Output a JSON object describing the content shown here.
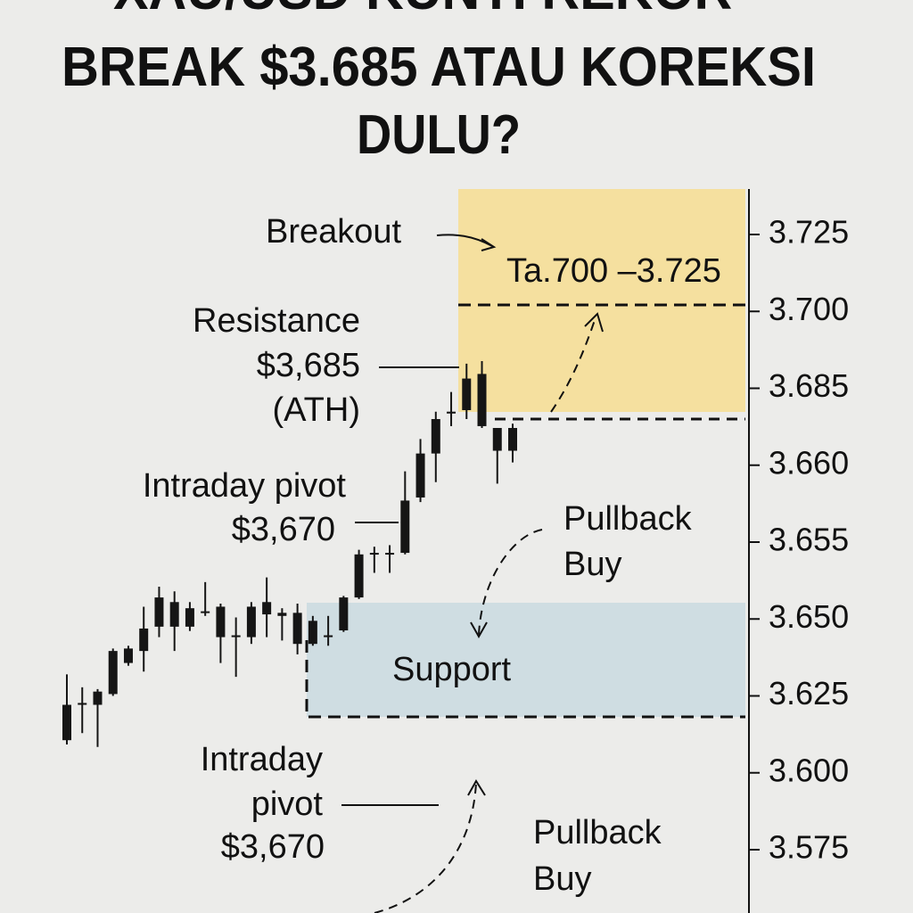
{
  "chart_data": {
    "type": "candlestick",
    "title": [
      "XAU/USD KUNTI REKOR —",
      "BREAK $3.685 ATAU KOREKSI",
      "DULU?"
    ],
    "categories": [
      null,
      null,
      null,
      null,
      null,
      null,
      null,
      null,
      null,
      null,
      null,
      null,
      null,
      null,
      null,
      null,
      null,
      null,
      null,
      null,
      null,
      null,
      null,
      null,
      null,
      null,
      null,
      null,
      null,
      null
    ],
    "high": [
      3.632,
      3.6278,
      3.6272,
      3.6404,
      3.6413,
      3.6508,
      3.6521,
      3.6518,
      3.6511,
      3.6524,
      3.651,
      3.6501,
      3.6511,
      3.6527,
      3.6507,
      3.651,
      3.6502,
      3.6502,
      3.6515,
      3.6545,
      3.6547,
      3.6548,
      3.6596,
      3.6685,
      3.6774,
      3.6838,
      3.6898,
      3.6903,
      3.6721,
      3.6735
    ],
    "low": [
      3.6092,
      3.6129,
      3.6084,
      3.625,
      3.6348,
      3.6329,
      3.6441,
      3.6396,
      3.6461,
      3.6502,
      3.6357,
      3.6312,
      3.6419,
      3.6441,
      3.643,
      3.6385,
      3.6413,
      3.6413,
      3.6458,
      3.6513,
      3.653,
      3.653,
      3.6542,
      3.6576,
      3.6589,
      3.6727,
      3.675,
      3.6721,
      3.6588,
      3.6609
    ],
    "open": [
      3.6106,
      3.6221,
      3.6221,
      3.6256,
      3.6357,
      3.6396,
      3.6475,
      3.6475,
      3.6475,
      3.6504,
      3.6441,
      3.6441,
      3.6441,
      3.6503,
      3.6502,
      3.6419,
      3.6419,
      3.6441,
      3.6463,
      3.6514,
      3.6542,
      3.6542,
      3.6543,
      3.6579,
      3.6638,
      3.6768,
      3.6779,
      3.6727,
      3.6647,
      3.6647
    ],
    "close": [
      3.6221,
      3.6227,
      3.6264,
      3.6396,
      3.6404,
      3.6469,
      3.6514,
      3.6511,
      3.6507,
      3.6505,
      3.6508,
      3.6447,
      3.6508,
      3.6511,
      3.6504,
      3.6504,
      3.6494,
      3.6447,
      3.6514,
      3.6542,
      3.6543,
      3.6543,
      3.6577,
      3.6638,
      3.675,
      3.6774,
      3.6869,
      3.6878,
      3.6721,
      3.6721
    ],
    "color": "#151515",
    "ylim": [
      3.575,
      3.725
    ],
    "yticks": [
      3.725,
      {
        "value": 3.7,
        "label": "3.700"
      },
      3.685,
      {
        "value": 3.66,
        "label": "3.660"
      },
      3.655,
      {
        "value": 3.65,
        "label": "3.650"
      },
      3.625,
      {
        "value": 3.6,
        "label": "3.600"
      },
      3.575
    ],
    "annotations": {
      "breakout": "Breakout",
      "target_zone": "Ta.700 –3.725",
      "resistance": [
        "Resistance",
        "$3,685",
        "(ATH)"
      ],
      "pivot_upper": [
        "Intraday pivot",
        "$3,670"
      ],
      "pullback_upper": [
        "Pullback",
        "Buy"
      ],
      "support": "Support",
      "pivot_lower": [
        "Intraday",
        "pivot",
        "$3,670"
      ],
      "pullback_lower": [
        "Pullback",
        "Buy"
      ]
    }
  }
}
